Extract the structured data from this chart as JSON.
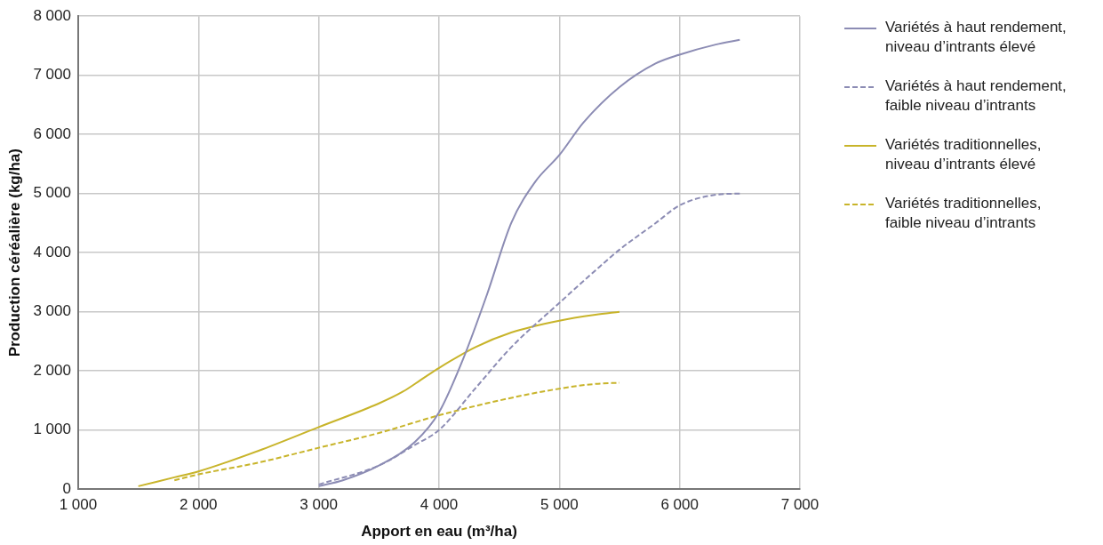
{
  "chart_data": {
    "type": "line",
    "xlabel": "Apport en eau (m³/ha)",
    "ylabel": "Production céréalière (kg/ha)",
    "xlim": [
      1000,
      7000
    ],
    "xticks": [
      {
        "value": 1000,
        "label": "1 000"
      },
      {
        "value": 2000,
        "label": "2 000"
      },
      {
        "value": 3000,
        "label": "3 000"
      },
      {
        "value": 4000,
        "label": "4 000"
      },
      {
        "value": 5000,
        "label": "5 000"
      },
      {
        "value": 6000,
        "label": "6 000"
      },
      {
        "value": 7000,
        "label": "7 000"
      }
    ],
    "ylim": [
      0,
      8000
    ],
    "yticks": [
      0,
      {
        "value": 1000,
        "label": "1 000"
      },
      {
        "value": 2000,
        "label": "2 000"
      },
      {
        "value": 3000,
        "label": "3 000"
      },
      {
        "value": 4000,
        "label": "4 000"
      },
      {
        "value": 5000,
        "label": "5 000"
      },
      {
        "value": 6000,
        "label": "6 000"
      },
      {
        "value": 7000,
        "label": "7 000"
      },
      {
        "value": 8000,
        "label": "8 000"
      }
    ],
    "grid": true,
    "legend": "right",
    "marker": "none",
    "series": [
      {
        "name": "Variétés à haut rendement, niveau d’intrants élevé",
        "color": "#8c8cb4",
        "line_style": "solid",
        "x": [
          3000,
          3200,
          3500,
          3800,
          4000,
          4200,
          4400,
          4600,
          4800,
          5000,
          5200,
          5500,
          5800,
          6000,
          6300,
          6500
        ],
        "values": [
          50,
          150,
          400,
          800,
          1300,
          2200,
          3300,
          4500,
          5200,
          5650,
          6200,
          6800,
          7200,
          7350,
          7520,
          7600
        ]
      },
      {
        "name": "Variétés à haut rendement, faible niveau d’intrants",
        "color": "#8c8cb4",
        "line_style": "dashed",
        "x": [
          3000,
          3500,
          3800,
          4000,
          4300,
          4600,
          5000,
          5300,
          5500,
          5800,
          6000,
          6300,
          6500
        ],
        "values": [
          80,
          400,
          750,
          1000,
          1700,
          2400,
          3150,
          3700,
          4050,
          4500,
          4800,
          4980,
          5000
        ]
      },
      {
        "name": "Variétés traditionnelles, niveau d’intrants élevé",
        "color": "#c8b42a",
        "line_style": "solid",
        "x": [
          1500,
          1800,
          2000,
          2500,
          3000,
          3500,
          3700,
          3850,
          4000,
          4300,
          4600,
          5000,
          5300,
          5500
        ],
        "values": [
          50,
          200,
          300,
          650,
          1050,
          1450,
          1650,
          1850,
          2050,
          2400,
          2650,
          2850,
          2950,
          3000
        ]
      },
      {
        "name": "Variétés traditionnelles, faible niveau d’intrants",
        "color": "#c8b42a",
        "line_style": "dashed",
        "x": [
          1800,
          2000,
          2500,
          3000,
          3500,
          4000,
          4500,
          5000,
          5300,
          5500
        ],
        "values": [
          150,
          250,
          450,
          700,
          950,
          1250,
          1500,
          1700,
          1780,
          1800
        ]
      }
    ]
  }
}
